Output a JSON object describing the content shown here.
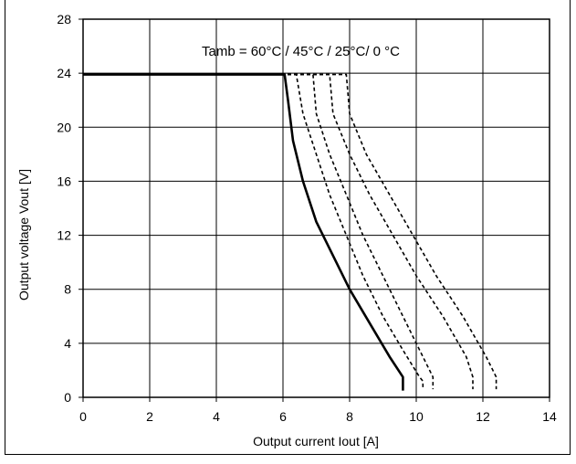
{
  "chart_data": {
    "type": "line",
    "title": "",
    "annotation": "Tamb = 60°C / 45°C / 25°C/ 0 °C",
    "xlabel": "Output current Iout [A]",
    "ylabel": "Output voltage Vout [V]",
    "xlim": [
      0,
      14
    ],
    "ylim": [
      0,
      28
    ],
    "xticks": [
      0,
      2,
      4,
      6,
      8,
      10,
      12,
      14
    ],
    "yticks": [
      0,
      4,
      8,
      12,
      16,
      20,
      24,
      28
    ],
    "grid": true,
    "legend": "none",
    "series": [
      {
        "style": "solid",
        "x": [
          0,
          6.05,
          6.15,
          6.3,
          6.6,
          7.0,
          7.5,
          8.0,
          8.6,
          9.2,
          9.6,
          9.6
        ],
        "y": [
          23.9,
          23.9,
          22.0,
          19.0,
          16.0,
          13.0,
          10.5,
          8.0,
          5.5,
          3.0,
          1.5,
          0.5
        ]
      },
      {
        "style": "dashed",
        "x": [
          0,
          6.4,
          6.6,
          7.0,
          7.4,
          7.9,
          8.4,
          9.0,
          9.6,
          10.1,
          10.2,
          10.2
        ],
        "y": [
          23.9,
          23.9,
          21.0,
          18.0,
          15.0,
          12.0,
          9.0,
          6.0,
          3.5,
          1.5,
          1.2,
          0.6
        ]
      },
      {
        "style": "dashed",
        "x": [
          0,
          6.9,
          7.0,
          7.4,
          7.9,
          8.4,
          9.0,
          9.6,
          10.2,
          10.5,
          10.5
        ],
        "y": [
          23.9,
          23.9,
          21.0,
          18.0,
          15.0,
          12.0,
          9.0,
          6.0,
          3.0,
          1.5,
          0.6
        ]
      },
      {
        "style": "dashed",
        "x": [
          0,
          7.4,
          7.5,
          8.0,
          8.6,
          9.3,
          10.0,
          10.8,
          11.5,
          11.7,
          11.7
        ],
        "y": [
          23.9,
          23.9,
          21.0,
          18.0,
          15.0,
          12.0,
          9.0,
          6.0,
          3.0,
          1.5,
          0.6
        ]
      },
      {
        "style": "dashed",
        "x": [
          0,
          7.9,
          8.0,
          8.5,
          9.2,
          9.9,
          10.6,
          11.4,
          12.1,
          12.4,
          12.4
        ],
        "y": [
          23.9,
          23.9,
          21.0,
          18.0,
          15.0,
          12.0,
          9.0,
          6.0,
          3.0,
          1.5,
          0.6
        ]
      }
    ]
  }
}
